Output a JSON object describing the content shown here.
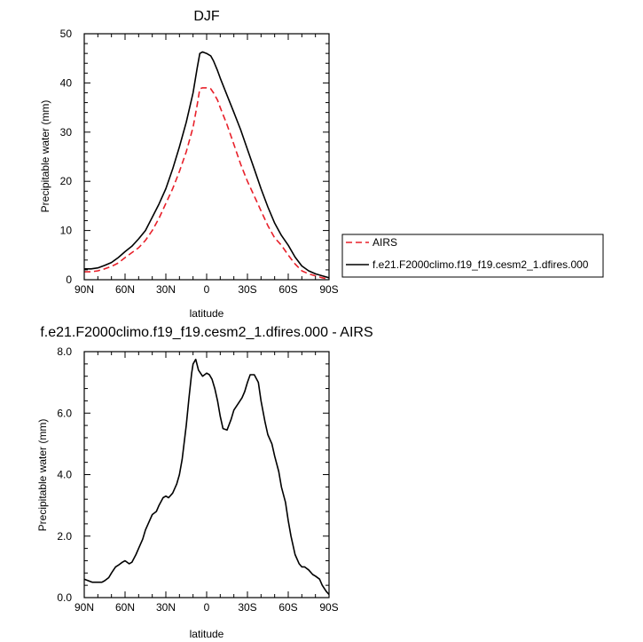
{
  "chart_data": [
    {
      "type": "line",
      "title": "DJF",
      "xlabel": "latitude",
      "ylabel": "Precipitable water (mm)",
      "xlim": [
        90,
        -90
      ],
      "ylim": [
        0,
        50
      ],
      "xticks": [
        90,
        60,
        30,
        0,
        -30,
        -60,
        -90
      ],
      "xtick_labels": [
        "90N",
        "60N",
        "30N",
        "0",
        "30S",
        "60S",
        "90S"
      ],
      "yticks": [
        0,
        10,
        20,
        30,
        40,
        50
      ],
      "ytick_labels": [
        "0",
        "10",
        "20",
        "30",
        "40",
        "50"
      ],
      "grid": false,
      "legend": "right",
      "series": [
        {
          "name": "AIRS",
          "color": "#e8202a",
          "dash": "dashed",
          "x": [
            90,
            85,
            80,
            75,
            70,
            65,
            60,
            55,
            50,
            45,
            40,
            35,
            30,
            25,
            20,
            15,
            10,
            7,
            5,
            3,
            0,
            -3,
            -5,
            -8,
            -10,
            -15,
            -20,
            -25,
            -30,
            -35,
            -40,
            -45,
            -50,
            -55,
            -60,
            -65,
            -70,
            -75,
            -80,
            -85,
            -90
          ],
          "y": [
            1.6,
            1.6,
            1.8,
            2.2,
            2.7,
            3.4,
            4.5,
            5.5,
            6.5,
            8.0,
            10.0,
            12.5,
            15.5,
            18.5,
            22.0,
            26.0,
            31.0,
            35.5,
            38.8,
            39.0,
            39.0,
            38.8,
            38.0,
            36.5,
            35.0,
            31.5,
            27.5,
            23.5,
            20.0,
            17.0,
            14.0,
            11.0,
            8.5,
            7.0,
            5.0,
            3.2,
            1.8,
            1.2,
            0.8,
            0.4,
            0.1
          ]
        },
        {
          "name": "f.e21.F2000climo.f19_f19.cesm2_1.dfires.000",
          "color": "#000000",
          "dash": "solid",
          "x": [
            90,
            85,
            80,
            75,
            70,
            65,
            60,
            55,
            50,
            45,
            40,
            35,
            30,
            25,
            20,
            15,
            10,
            7,
            5,
            3,
            0,
            -3,
            -5,
            -8,
            -10,
            -15,
            -20,
            -25,
            -30,
            -35,
            -40,
            -45,
            -50,
            -55,
            -60,
            -65,
            -70,
            -75,
            -80,
            -85,
            -90
          ],
          "y": [
            2.2,
            2.2,
            2.4,
            2.9,
            3.5,
            4.5,
            5.7,
            6.8,
            8.3,
            10.0,
            12.7,
            15.4,
            18.5,
            22.5,
            27.0,
            32.0,
            38.0,
            43.0,
            46.0,
            46.3,
            46.0,
            45.5,
            44.5,
            42.5,
            41.0,
            37.5,
            34.0,
            30.5,
            26.5,
            22.5,
            18.5,
            14.8,
            11.5,
            9.0,
            7.0,
            4.6,
            2.8,
            1.8,
            1.2,
            0.8,
            0.4
          ]
        }
      ]
    },
    {
      "type": "line",
      "title": "f.e21.F2000climo.f19_f19.cesm2_1.dfires.000 - AIRS",
      "xlabel": "latitude",
      "ylabel": "Precipitable water (mm)",
      "xlim": [
        90,
        -90
      ],
      "ylim": [
        0,
        8
      ],
      "xticks": [
        90,
        60,
        30,
        0,
        -30,
        -60,
        -90
      ],
      "xtick_labels": [
        "90N",
        "60N",
        "30N",
        "0",
        "30S",
        "60S",
        "90S"
      ],
      "yticks": [
        0,
        2,
        4,
        6,
        8
      ],
      "ytick_labels": [
        "0.0",
        "2.0",
        "4.0",
        "6.0",
        "8.0"
      ],
      "grid": false,
      "series": [
        {
          "color": "#000000",
          "dash": "solid",
          "x": [
            90,
            87,
            84,
            80,
            77,
            75,
            72,
            70,
            67,
            65,
            62,
            60,
            57,
            55,
            52,
            50,
            47,
            45,
            42,
            40,
            37,
            35,
            32,
            30,
            28,
            25,
            22,
            20,
            18,
            15,
            13,
            11,
            10,
            8,
            6,
            3,
            0,
            -2,
            -4,
            -6,
            -8,
            -10,
            -12,
            -15,
            -18,
            -20,
            -23,
            -26,
            -28,
            -30,
            -32,
            -35,
            -38,
            -40,
            -43,
            -45,
            -48,
            -50,
            -53,
            -55,
            -58,
            -60,
            -62,
            -65,
            -68,
            -70,
            -72,
            -75,
            -78,
            -80,
            -83,
            -85,
            -88,
            -90
          ],
          "y": [
            0.6,
            0.55,
            0.5,
            0.5,
            0.5,
            0.55,
            0.65,
            0.8,
            1.0,
            1.05,
            1.15,
            1.2,
            1.1,
            1.15,
            1.4,
            1.6,
            1.9,
            2.2,
            2.5,
            2.7,
            2.8,
            3.0,
            3.25,
            3.3,
            3.25,
            3.4,
            3.7,
            4.0,
            4.5,
            5.6,
            6.5,
            7.3,
            7.6,
            7.75,
            7.4,
            7.2,
            7.3,
            7.25,
            7.1,
            6.8,
            6.4,
            5.9,
            5.5,
            5.45,
            5.8,
            6.1,
            6.3,
            6.5,
            6.7,
            7.0,
            7.25,
            7.25,
            7.0,
            6.4,
            5.7,
            5.3,
            5.0,
            4.6,
            4.1,
            3.6,
            3.1,
            2.5,
            2.0,
            1.4,
            1.1,
            1.0,
            1.0,
            0.9,
            0.75,
            0.7,
            0.6,
            0.4,
            0.2,
            0.1
          ]
        }
      ]
    }
  ]
}
